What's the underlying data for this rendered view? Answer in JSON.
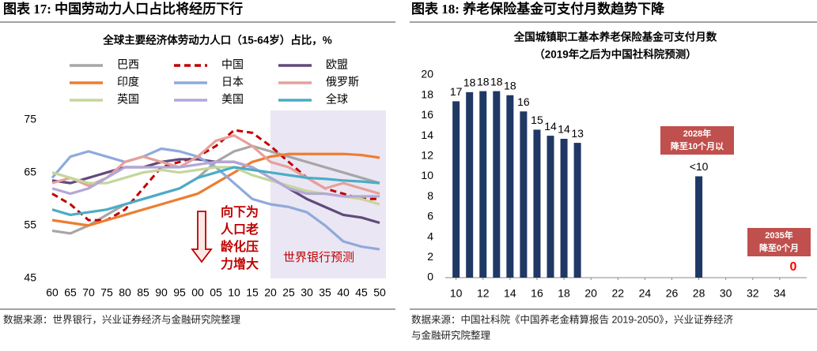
{
  "header_left": "图表 17:  中国劳动力人口占比将经历下行",
  "header_right": "图表 18:  养老保险基金可支付月数趋势下降",
  "source_left": "数据来源：世界银行，兴业证券经济与金融研究院整理",
  "source_right": [
    "数据来源：中国社科院《中国养老金精算报告 2019-2050》，兴业证券经济",
    "与金融研究院整理"
  ],
  "chart_data": [
    {
      "type": "line",
      "title": "全球主要经济体劳动力人口（15-64岁）占比，%",
      "categories": [
        "60",
        "65",
        "70",
        "75",
        "80",
        "85",
        "90",
        "95",
        "00",
        "05",
        "10",
        "15",
        "20",
        "25",
        "30",
        "35",
        "40",
        "45",
        "50"
      ],
      "series": [
        {
          "name": "巴西",
          "color": "#a6a6a6",
          "values": [
            54,
            53.5,
            55,
            57,
            59,
            60,
            61,
            62,
            64,
            67,
            69,
            70,
            69,
            68,
            67,
            66,
            65,
            64,
            63
          ]
        },
        {
          "name": "中国",
          "color": "#c00000",
          "dashed": true,
          "values": [
            61,
            59,
            56,
            56,
            58,
            62,
            66,
            67,
            68,
            70,
            73,
            72.5,
            70,
            67,
            64,
            62,
            61,
            60,
            60
          ]
        },
        {
          "name": "欧盟",
          "color": "#604a7b",
          "values": [
            63.5,
            63,
            64,
            65,
            66,
            66,
            67,
            67.5,
            67.5,
            67,
            67,
            66,
            64,
            62,
            60,
            58.5,
            57,
            56.5,
            55.5
          ]
        },
        {
          "name": "印度",
          "color": "#ed7d31",
          "values": [
            56,
            55.5,
            55,
            56,
            57,
            58,
            59,
            60,
            61,
            63,
            65,
            67,
            68,
            68.5,
            68.5,
            68.5,
            68.5,
            68.3,
            67.8
          ]
        },
        {
          "name": "日本",
          "color": "#8faadc",
          "values": [
            64,
            68,
            69,
            68,
            67,
            68,
            69.5,
            69,
            68,
            66,
            63,
            60,
            59,
            58.5,
            57.5,
            55,
            52,
            51,
            50.5
          ]
        },
        {
          "name": "俄罗斯",
          "color": "#e6a09a",
          "values": [
            63,
            64,
            62.5,
            64,
            67,
            68,
            67,
            66,
            68,
            71,
            72,
            70,
            67,
            66,
            64,
            62,
            63,
            62,
            61
          ]
        },
        {
          "name": "英国",
          "color": "#c4d79b",
          "values": [
            65,
            64,
            63,
            63,
            64,
            65,
            65.5,
            65,
            65.5,
            66,
            66,
            64.5,
            63.5,
            62.5,
            61.5,
            61,
            60.5,
            60,
            59
          ]
        },
        {
          "name": "美国",
          "color": "#b4a7d6",
          "values": [
            62,
            61,
            62,
            64,
            66,
            66,
            66,
            66,
            66.5,
            67,
            67,
            66,
            64,
            62,
            61,
            61,
            60.5,
            60.5,
            60.5
          ]
        },
        {
          "name": "全球",
          "color": "#4bacc6",
          "values": [
            58,
            57,
            57.5,
            58,
            59,
            60,
            61,
            62,
            64,
            65,
            66,
            65.5,
            65,
            64.5,
            64,
            63.8,
            63.5,
            63.3,
            63
          ]
        }
      ],
      "ylim": [
        45,
        80
      ],
      "yticks": [
        45,
        55,
        65,
        75
      ],
      "forecast_label": "世界银行预测",
      "forecast_from": "20",
      "forecast_color": "#ebe6f3",
      "annotation": [
        "向下为",
        "人口老",
        "龄化压",
        "力增大"
      ],
      "annotation_color": "#c00000"
    },
    {
      "type": "bar",
      "title": [
        "全国城镇职工基本养老保险基金可支付月数",
        "（2019年之后为中国社科院预测）"
      ],
      "x": [
        10,
        11,
        12,
        13,
        14,
        15,
        16,
        17,
        18,
        19,
        28,
        35
      ],
      "values": [
        17.4,
        18.3,
        18.4,
        18.4,
        18.0,
        16.4,
        14.6,
        14.0,
        13.7,
        13.3,
        10,
        0
      ],
      "value_labels": [
        "17",
        "18",
        "18",
        "18",
        "18",
        "16",
        "15",
        "14",
        "14",
        "13",
        "<10",
        "0"
      ],
      "label_colors": [
        "#000",
        "#000",
        "#000",
        "#000",
        "#000",
        "#000",
        "#000",
        "#000",
        "#000",
        "#000",
        "#000",
        "#ff0000"
      ],
      "color": "#1f3864",
      "xlim": [
        9.2,
        36
      ],
      "xticks": [
        10,
        12,
        14,
        16,
        18,
        20,
        22,
        24,
        26,
        28,
        30,
        32,
        34
      ],
      "ylim": [
        0,
        20
      ],
      "yticks": [
        0,
        2,
        4,
        6,
        8,
        10,
        12,
        14,
        16,
        18,
        20
      ],
      "annotations": [
        [
          "2028年",
          "降至10个月以"
        ],
        [
          "2035年",
          "降至0个月"
        ]
      ],
      "annotation_color": "#c0504d"
    }
  ]
}
